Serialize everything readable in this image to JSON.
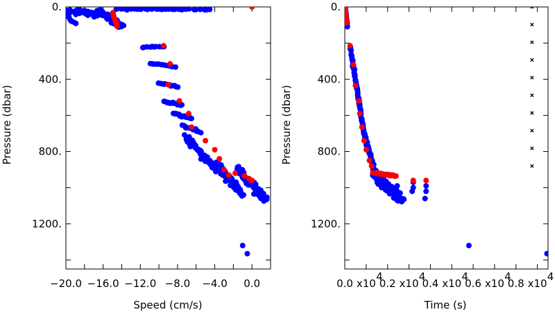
{
  "chart_data": [
    {
      "type": "scatter",
      "title": "",
      "xlabel": "Speed (cm/s)",
      "ylabel": "Pressure (dbar)",
      "xlim": [
        -20.0,
        2.0
      ],
      "ylim": [
        1450,
        0
      ],
      "y_inverted": true,
      "x_ticks": [
        {
          "value": -20,
          "label": "−20.0"
        },
        {
          "value": -16,
          "label": "−16.0"
        },
        {
          "value": -12,
          "label": "−12.0"
        },
        {
          "value": -8,
          "label": "−8.0"
        },
        {
          "value": -4,
          "label": "−4.0"
        },
        {
          "value": 0,
          "label": "0.0"
        }
      ],
      "y_ticks": [
        {
          "value": 0,
          "label": "0."
        },
        {
          "value": 400,
          "label": "400."
        },
        {
          "value": 800,
          "label": "800."
        },
        {
          "value": 1200,
          "label": "1200."
        }
      ],
      "series": [
        {
          "color": "#0000ff",
          "segments": [
            {
              "x": [
                -20.0,
                -16.0
              ],
              "y": [
                25,
                40
              ],
              "n": 45,
              "jx": 0.35,
              "jy": 22
            },
            {
              "x": [
                -16.5,
                -14.0
              ],
              "y": [
                20,
                110
              ],
              "n": 90,
              "jx": 0.4,
              "jy": 15
            },
            {
              "x": [
                -14.5,
                -4.5
              ],
              "y": [
                12,
                15
              ],
              "n": 28,
              "jx": 0.2,
              "jy": 5
            },
            {
              "x": [
                -20.0,
                -19.0
              ],
              "y": [
                50,
                90
              ],
              "n": 8,
              "jx": 0.3,
              "jy": 10
            },
            {
              "x": [
                -11.8,
                -9.5
              ],
              "y": [
                222,
                220
              ],
              "n": 10,
              "jx": 0.2,
              "jy": 8
            },
            {
              "x": [
                -11.0,
                -8.2
              ],
              "y": [
                312,
                330
              ],
              "n": 12,
              "jx": 0.2,
              "jy": 9
            },
            {
              "x": [
                -10.0,
                -8.0
              ],
              "y": [
                425,
                440
              ],
              "n": 12,
              "jx": 0.2,
              "jy": 9
            },
            {
              "x": [
                -9.5,
                -7.5
              ],
              "y": [
                520,
                545
              ],
              "n": 14,
              "jx": 0.2,
              "jy": 10
            },
            {
              "x": [
                -8.5,
                -6.5
              ],
              "y": [
                590,
                615
              ],
              "n": 14,
              "jx": 0.2,
              "jy": 10
            },
            {
              "x": [
                -7.5,
                -5.5
              ],
              "y": [
                660,
                690
              ],
              "n": 14,
              "jx": 0.2,
              "jy": 10
            },
            {
              "x": [
                -7.0,
                -4.0
              ],
              "y": [
                720,
                900
              ],
              "n": 60,
              "jx": 0.45,
              "jy": 25
            },
            {
              "x": [
                -4.0,
                -1.0
              ],
              "y": [
                860,
                1040
              ],
              "n": 80,
              "jx": 0.5,
              "jy": 30
            },
            {
              "x": [
                -1.5,
                1.5
              ],
              "y": [
                900,
                1070
              ],
              "n": 90,
              "jx": 0.35,
              "jy": 35
            }
          ],
          "points": [
            [
              -1.0,
              1320
            ],
            [
              -0.5,
              1365
            ]
          ]
        },
        {
          "color": "#ff0000",
          "segments": [
            {
              "x": [
                -15.0,
                -14.5
              ],
              "y": [
                30,
                105
              ],
              "n": 9,
              "jx": 0.12,
              "jy": 6
            }
          ],
          "points": [
            [
              0.0,
              0
            ],
            [
              -9.5,
              215
            ],
            [
              -8.8,
              315
            ],
            [
              -9.0,
              430
            ],
            [
              -7.8,
              520
            ],
            [
              -6.8,
              590
            ],
            [
              -6.5,
              665
            ],
            [
              -5.0,
              740
            ],
            [
              -4.0,
              790
            ],
            [
              -3.5,
              840
            ],
            [
              -3.0,
              900
            ],
            [
              -2.5,
              930
            ],
            [
              -1.8,
              920
            ],
            [
              -0.8,
              935
            ],
            [
              -0.3,
              950
            ],
            [
              0.0,
              960
            ]
          ]
        }
      ]
    },
    {
      "type": "scatter",
      "title": "",
      "xlabel": "Time (s)",
      "ylabel": "Pressure (dbar)",
      "xlim": [
        0,
        95000
      ],
      "ylim": [
        1450,
        0
      ],
      "y_inverted": true,
      "x_ticks": [
        {
          "value": 0,
          "label": "0.0"
        },
        {
          "value": 20000,
          "label": "0.2"
        },
        {
          "value": 40000,
          "label": "0.4"
        },
        {
          "value": 60000,
          "label": "0.6"
        },
        {
          "value": 80000,
          "label": "0.8"
        }
      ],
      "x_multiplier_labels": [
        {
          "value": 10000,
          "label": "x10"
        },
        {
          "value": 30000,
          "label": "x10"
        },
        {
          "value": 50000,
          "label": "x10"
        },
        {
          "value": 70000,
          "label": "x10"
        },
        {
          "value": 90000,
          "label": "x10"
        }
      ],
      "x_multiplier_exponent": "4",
      "y_ticks": [
        {
          "value": 0,
          "label": "0."
        },
        {
          "value": 400,
          "label": "400."
        },
        {
          "value": 800,
          "label": "800."
        },
        {
          "value": 1200,
          "label": "1200."
        }
      ],
      "series": [
        {
          "color": "#0000ff",
          "segments": [
            {
              "x": [
                200,
                1200
              ],
              "y": [
                0,
                110
              ],
              "n": 16,
              "jx": 150,
              "jy": 8
            },
            {
              "x": [
                2500,
                9000
              ],
              "y": [
                220,
                700
              ],
              "n": 80,
              "jx": 300,
              "jy": 18
            },
            {
              "x": [
                9000,
                14000
              ],
              "y": [
                700,
                920
              ],
              "n": 50,
              "jx": 450,
              "jy": 22
            },
            {
              "x": [
                14000,
                26000
              ],
              "y": [
                930,
                1060
              ],
              "n": 120,
              "jx": 3000,
              "jy": 40
            }
          ],
          "points": [
            [
              24500,
              990
            ],
            [
              24500,
              1020
            ],
            [
              24500,
              1050
            ],
            [
              32000,
              1000
            ],
            [
              32000,
              970
            ],
            [
              31500,
              1020
            ],
            [
              38000,
              990
            ],
            [
              38000,
              1020
            ],
            [
              37500,
              1060
            ],
            [
              58000,
              1320
            ],
            [
              94500,
              1365
            ]
          ]
        },
        {
          "color": "#ff0000",
          "segments": [
            {
              "x": [
                200,
                800
              ],
              "y": [
                0,
                90
              ],
              "n": 10,
              "jx": 100,
              "jy": 5
            },
            {
              "x": [
                13000,
                24000
              ],
              "y": [
                915,
                935
              ],
              "n": 22,
              "jx": 500,
              "jy": 6
            }
          ],
          "points": [
            [
              2500,
              215
            ],
            [
              4000,
              320
            ],
            [
              5000,
              435
            ],
            [
              6500,
              520
            ],
            [
              7000,
              590
            ],
            [
              8000,
              665
            ],
            [
              9000,
              740
            ],
            [
              10000,
              790
            ],
            [
              11500,
              850
            ],
            [
              12500,
              880
            ],
            [
              32000,
              960
            ],
            [
              38000,
              960
            ]
          ]
        },
        {
          "color": "#000000",
          "marker": "x",
          "segments": [
            {
              "x": [
                87500,
                87500
              ],
              "y": [
                0,
                880
              ],
              "n": 10,
              "jx": 0,
              "jy": 0
            }
          ],
          "points": []
        }
      ]
    }
  ]
}
